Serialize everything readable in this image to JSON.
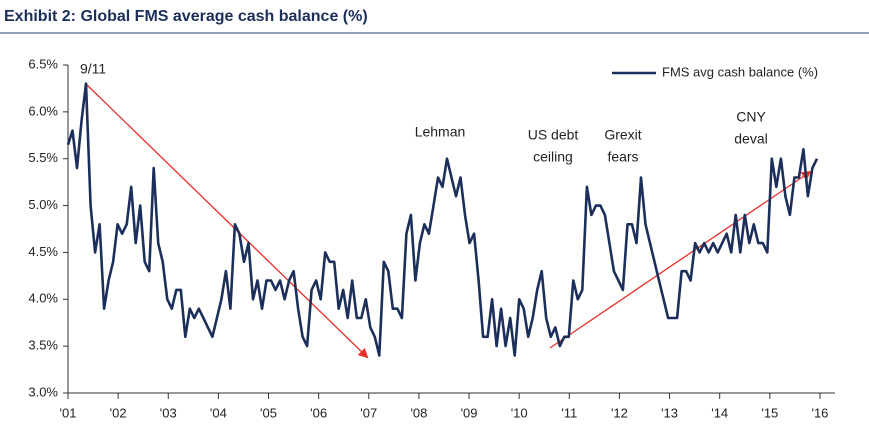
{
  "chart_data": {
    "type": "line",
    "title": "Exhibit 2: Global FMS average cash balance (%)",
    "annotations": [
      [
        "9/11"
      ],
      [
        "Lehman"
      ],
      [
        "US debt",
        "ceiling"
      ],
      [
        "Grexit",
        "fears"
      ],
      [
        "CNY",
        "deval"
      ]
    ],
    "legend": "top-right",
    "x": [
      2001,
      2001.09,
      2001.18,
      2001.27,
      2001.36,
      2001.45,
      2001.54,
      2001.63,
      2001.72,
      2001.81,
      2001.9,
      2001.99,
      2002.08,
      2002.17,
      2002.26,
      2002.35,
      2002.44,
      2002.53,
      2002.62,
      2002.71,
      2002.8,
      2002.89,
      2002.98,
      2003.07,
      2003.16,
      2003.25,
      2003.34,
      2003.43,
      2003.52,
      2003.61,
      2003.7,
      2003.79,
      2003.88,
      2003.97,
      2004.06,
      2004.15,
      2004.24,
      2004.33,
      2004.42,
      2004.51,
      2004.6,
      2004.69,
      2004.78,
      2004.87,
      2004.96,
      2005.05,
      2005.14,
      2005.23,
      2005.32,
      2005.41,
      2005.5,
      2005.59,
      2005.68,
      2005.77,
      2005.86,
      2005.95,
      2006.04,
      2006.13,
      2006.22,
      2006.31,
      2006.4,
      2006.49,
      2006.58,
      2006.67,
      2006.76,
      2006.85,
      2006.94,
      2007.03,
      2007.12,
      2007.21,
      2007.3,
      2007.39,
      2007.48,
      2007.57,
      2007.66,
      2007.75,
      2007.84,
      2007.93,
      2008.02,
      2008.11,
      2008.2,
      2008.29,
      2008.38,
      2008.47,
      2008.56,
      2008.65,
      2008.74,
      2008.83,
      2008.92,
      2009.01,
      2009.1,
      2009.19,
      2009.28,
      2009.37,
      2009.46,
      2009.55,
      2009.64,
      2009.73,
      2009.82,
      2009.91,
      2010,
      2010.09,
      2010.18,
      2010.27,
      2010.36,
      2010.45,
      2010.54,
      2010.63,
      2010.72,
      2010.81,
      2010.9,
      2010.99,
      2011.08,
      2011.17,
      2011.26,
      2011.35,
      2011.44,
      2011.53,
      2011.62,
      2011.71,
      2011.8,
      2011.89,
      2011.98,
      2012.07,
      2012.16,
      2012.25,
      2012.34,
      2012.43,
      2012.52,
      2012.61,
      2012.7,
      2012.79,
      2012.88,
      2012.97,
      2013.06,
      2013.15,
      2013.24,
      2013.33,
      2013.42,
      2013.51,
      2013.6,
      2013.69,
      2013.78,
      2013.87,
      2013.96,
      2014.05,
      2014.14,
      2014.23,
      2014.32,
      2014.41,
      2014.5,
      2014.59,
      2014.68,
      2014.77,
      2014.86,
      2014.95,
      2015.04,
      2015.13,
      2015.22,
      2015.31,
      2015.4,
      2015.49,
      2015.58,
      2015.67,
      2015.76,
      2015.85,
      2015.94
    ],
    "series": [
      {
        "name": "FMS avg cash balance (%)",
        "color": "#1c2f5a",
        "values": [
          5.65,
          5.8,
          5.4,
          5.9,
          6.3,
          5.0,
          4.5,
          4.8,
          3.9,
          4.2,
          4.4,
          4.8,
          4.7,
          4.8,
          5.2,
          4.6,
          5.0,
          4.4,
          4.3,
          5.4,
          4.6,
          4.4,
          4.0,
          3.9,
          4.1,
          4.1,
          3.6,
          3.9,
          3.8,
          3.9,
          3.8,
          3.7,
          3.6,
          3.8,
          4.0,
          4.3,
          3.9,
          4.8,
          4.7,
          4.4,
          4.6,
          4.0,
          4.2,
          3.9,
          4.2,
          4.2,
          4.1,
          4.2,
          4.0,
          4.2,
          4.3,
          3.9,
          3.6,
          3.5,
          4.1,
          4.2,
          4.0,
          4.5,
          4.4,
          4.4,
          3.9,
          4.1,
          3.8,
          4.2,
          3.8,
          3.8,
          4.0,
          3.7,
          3.6,
          3.4,
          4.4,
          4.3,
          3.9,
          3.9,
          3.8,
          4.7,
          4.9,
          4.2,
          4.6,
          4.8,
          4.7,
          5.0,
          5.3,
          5.2,
          5.5,
          5.3,
          5.1,
          5.3,
          4.9,
          4.6,
          4.7,
          4.2,
          3.6,
          3.6,
          4.0,
          3.5,
          3.9,
          3.5,
          3.8,
          3.4,
          4.0,
          3.9,
          3.6,
          3.8,
          4.1,
          4.3,
          3.8,
          3.6,
          3.7,
          3.5,
          3.6,
          3.6,
          4.2,
          4.0,
          4.1,
          5.2,
          4.9,
          5.0,
          5.0,
          4.9,
          4.6,
          4.3,
          4.2,
          4.1,
          4.8,
          4.8,
          4.6,
          5.3,
          4.8,
          4.6,
          4.4,
          4.2,
          4.0,
          3.8,
          3.8,
          3.8,
          4.3,
          4.3,
          4.2,
          4.6,
          4.5,
          4.6,
          4.5,
          4.6,
          4.5,
          4.6,
          4.7,
          4.5,
          4.9,
          4.5,
          4.9,
          4.6,
          4.8,
          4.6,
          4.6,
          4.5,
          5.5,
          5.2,
          5.5,
          5.1,
          4.9,
          5.3,
          5.3,
          5.6,
          5.1,
          5.4,
          5.5
        ]
      }
    ],
    "xlim": [
      2001,
      2016.3
    ],
    "xticks": [
      {
        "value": 2001,
        "label": "'01"
      },
      {
        "value": 2002,
        "label": "'02"
      },
      {
        "value": 2003,
        "label": "'03"
      },
      {
        "value": 2004,
        "label": "'04"
      },
      {
        "value": 2005,
        "label": "'05"
      },
      {
        "value": 2006,
        "label": "'06"
      },
      {
        "value": 2007,
        "label": "'07"
      },
      {
        "value": 2008,
        "label": "'08"
      },
      {
        "value": 2009,
        "label": "'09"
      },
      {
        "value": 2010,
        "label": "'10"
      },
      {
        "value": 2011,
        "label": "'11"
      },
      {
        "value": 2012,
        "label": "'12"
      },
      {
        "value": 2013,
        "label": "'13"
      },
      {
        "value": 2014,
        "label": "'14"
      },
      {
        "value": 2015,
        "label": "'15"
      },
      {
        "value": 2016,
        "label": "'16"
      }
    ],
    "ylim": [
      3,
      6.5
    ],
    "yticks": [
      {
        "value": 3,
        "label": "3.0%"
      },
      {
        "value": 3.5,
        "label": "3.5%"
      },
      {
        "value": 4,
        "label": "4.0%"
      },
      {
        "value": 4.5,
        "label": "4.5%"
      },
      {
        "value": 5,
        "label": "5.0%"
      },
      {
        "value": 5.5,
        "label": "5.5%"
      },
      {
        "value": 6,
        "label": "6.0%"
      },
      {
        "value": 6.5,
        "label": "6.5%"
      }
    ],
    "grid": false
  }
}
